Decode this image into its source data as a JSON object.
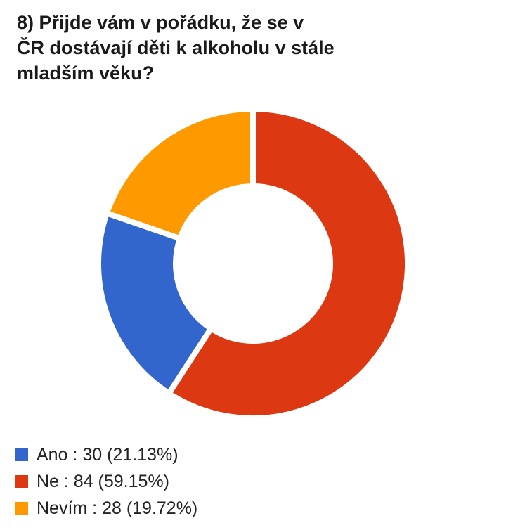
{
  "question": {
    "lines": [
      "8) Přijde vám v pořádku, že se v",
      "ČR dostávají děti k alkoholu v stále",
      "mladším věku?"
    ]
  },
  "chart_data": {
    "type": "pie",
    "donut": true,
    "title": "8) Přijde vám v pořádku, že se v ČR dostávají děti k alkoholu v stále mladším věku?",
    "legend_position": "bottom-left",
    "series": [
      {
        "name": "Ano",
        "value": 30,
        "percent": 21.13,
        "color": "#3366cc"
      },
      {
        "name": "Ne",
        "value": 84,
        "percent": 59.15,
        "color": "#dc3912"
      },
      {
        "name": "Nevím",
        "value": 28,
        "percent": 19.72,
        "color": "#ff9900"
      }
    ]
  },
  "legend": {
    "items": [
      {
        "label": "Ano : 30 (21.13%)",
        "color": "#3366cc"
      },
      {
        "label": "Ne : 84 (59.15%)",
        "color": "#dc3912"
      },
      {
        "label": "Nevím : 28 (19.72%)",
        "color": "#ff9900"
      }
    ]
  }
}
